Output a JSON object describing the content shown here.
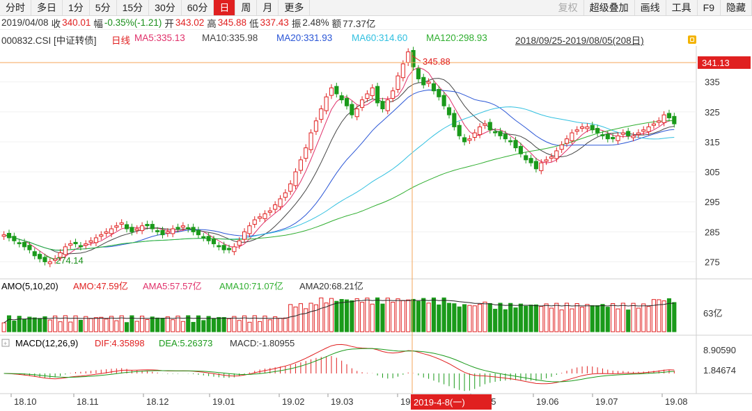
{
  "toolbar": {
    "left": [
      "分时",
      "多日",
      "1分",
      "5分",
      "15分",
      "30分",
      "60分",
      "日",
      "周",
      "月",
      "更多"
    ],
    "active": "日",
    "right": [
      "复权",
      "超级叠加",
      "画线",
      "工具",
      "F9",
      "隐藏"
    ],
    "disabled": "复权"
  },
  "info": {
    "date": "2019/04/08",
    "close_label": "收",
    "close": "340.01",
    "change_label": "幅",
    "change": "-0.35%(-1.21)",
    "open_label": "开",
    "open": "343.02",
    "high_label": "高",
    "high": "345.88",
    "low_label": "低",
    "low": "337.43",
    "amp_label": "振",
    "amp": "2.48%",
    "amount_label": "额",
    "amount": "77.37亿"
  },
  "title": {
    "code": "000832.CSI [中证转债]",
    "period": "日线",
    "ma5": "MA5:335.13",
    "ma10": "MA10:335.98",
    "ma20": "MA20:331.93",
    "ma60": "MA60:314.60",
    "ma120": "MA120:298.93",
    "range": "2018/09/25-2019/08/05(208日)"
  },
  "colors": {
    "up": "#e02020",
    "down": "#1a9a1a",
    "ma5": "#e0306a",
    "ma10": "#444444",
    "ma20": "#2a56d6",
    "ma60": "#31c0e0",
    "ma120": "#2fae2f",
    "crosshair": "#f5a55a",
    "highlight": "#e02020"
  },
  "volume_panel": {
    "label": "AMO(5,10,20)",
    "amo": "AMO:47.59亿",
    "ama5": "AMA5:57.57亿",
    "ama10": "AMA10:71.07亿",
    "ama20": "AMA20:68.21亿",
    "tick": "63亿"
  },
  "macd_panel": {
    "label": "MACD(12,26,9)",
    "dif": "DIF:4.35898",
    "dea": "DEA:5.26373",
    "macd": "MACD:-1.80955",
    "tick_top": "8.90590",
    "tick_mid": "1.84674"
  },
  "x_axis": {
    "labels": [
      "18.10",
      "18.11",
      "18.12",
      "19.01",
      "19.02",
      "19.03",
      "19",
      "19.05",
      "19.06",
      "19.07",
      "19.08"
    ],
    "cursor_label": "2019-4-8(一)"
  },
  "chart_data": {
    "type": "candlestick",
    "price_ticks": [
      335,
      325,
      315,
      305,
      295,
      285,
      275
    ],
    "ylim": [
      270,
      347
    ],
    "cursor_price": "341.13",
    "max_label": "345.88",
    "min_label": "274.14",
    "range_start": "2018/09/25",
    "range_end": "2019/08/05",
    "bars": 208,
    "closes_approx": [
      284,
      283,
      282,
      281,
      280,
      279,
      277,
      276,
      275,
      275,
      276,
      278,
      280,
      281,
      281,
      280,
      281,
      282,
      283,
      284,
      285,
      286,
      287,
      288,
      286,
      285,
      286,
      287,
      287,
      286,
      285,
      284,
      285,
      286,
      286,
      287,
      286,
      285,
      284,
      283,
      282,
      281,
      280,
      279,
      279,
      280,
      282,
      285,
      287,
      289,
      290,
      291,
      292,
      294,
      296,
      298,
      301,
      305,
      309,
      313,
      318,
      322,
      326,
      330,
      333,
      331,
      329,
      327,
      324,
      326,
      329,
      331,
      333,
      328,
      326,
      329,
      332,
      337,
      341,
      345,
      340,
      336,
      334,
      335,
      332,
      330,
      327,
      324,
      320,
      317,
      315,
      316,
      318,
      320,
      321,
      319,
      318,
      317,
      316,
      315,
      313,
      311,
      309,
      308,
      306,
      308,
      309,
      310,
      312,
      314,
      316,
      318,
      319,
      320,
      320,
      319,
      318,
      317,
      316,
      316,
      317,
      318,
      317,
      317,
      318,
      319,
      320,
      321,
      322,
      324,
      323,
      321
    ]
  }
}
